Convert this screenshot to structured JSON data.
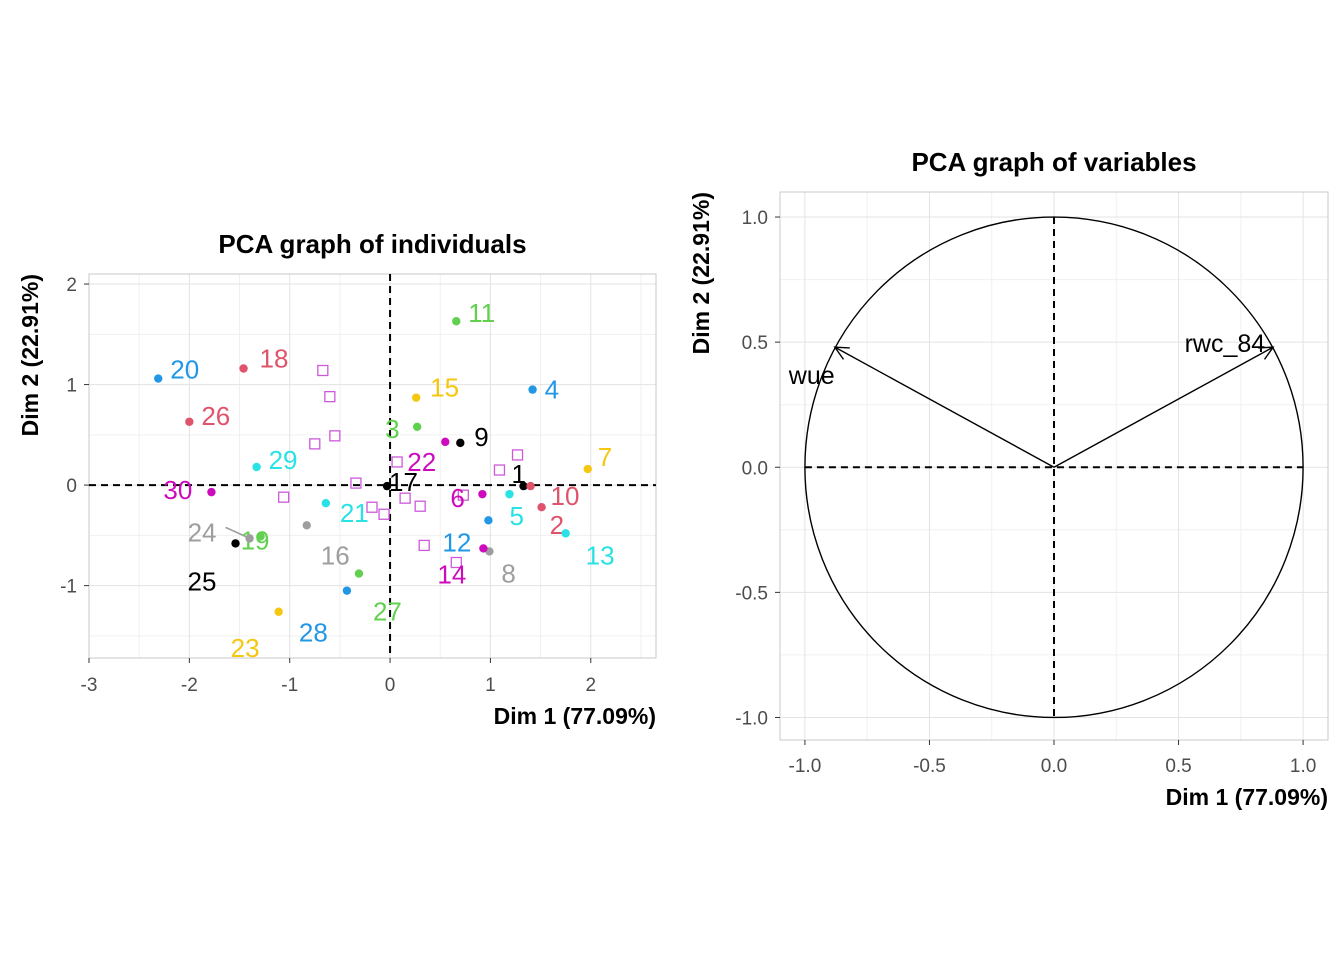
{
  "chart_data": [
    {
      "type": "scatter",
      "title": "PCA graph of individuals",
      "xlabel": "Dim 1 (77.09%)",
      "ylabel": "Dim 2 (22.91%)",
      "xlim": [
        -3,
        2.65
      ],
      "ylim": [
        -1.72,
        2.1
      ],
      "xticks": [
        -3,
        -2,
        -1,
        0,
        1,
        2
      ],
      "yticks": [
        -1,
        0,
        1,
        2
      ],
      "grid": true,
      "reference_lines": "dashed at x=0 and y=0",
      "individuals": [
        {
          "label": "1",
          "x": 1.33,
          "y": -0.01,
          "color": "#000000"
        },
        {
          "label": "2",
          "x": 1.51,
          "y": -0.22,
          "color": "#DF536B"
        },
        {
          "label": "3",
          "x": 0.27,
          "y": 0.58,
          "color": "#61D04F"
        },
        {
          "label": "4",
          "x": 1.42,
          "y": 0.95,
          "color": "#2297E6"
        },
        {
          "label": "5",
          "x": 1.19,
          "y": -0.09,
          "color": "#28E2E5"
        },
        {
          "label": "6",
          "x": 0.92,
          "y": -0.09,
          "color": "#CD0BBC"
        },
        {
          "label": "7",
          "x": 1.97,
          "y": 0.16,
          "color": "#F5C710"
        },
        {
          "label": "8",
          "x": 0.99,
          "y": -0.66,
          "color": "#9E9E9E"
        },
        {
          "label": "9",
          "x": 0.7,
          "y": 0.42,
          "color": "#000000"
        },
        {
          "label": "10",
          "x": 1.4,
          "y": -0.01,
          "color": "#DF536B"
        },
        {
          "label": "11",
          "x": 0.66,
          "y": 1.63,
          "color": "#61D04F"
        },
        {
          "label": "12",
          "x": 0.98,
          "y": -0.35,
          "color": "#2297E6"
        },
        {
          "label": "13",
          "x": 1.75,
          "y": -0.48,
          "color": "#28E2E5"
        },
        {
          "label": "14",
          "x": 0.93,
          "y": -0.63,
          "color": "#CD0BBC"
        },
        {
          "label": "15",
          "x": 0.26,
          "y": 0.87,
          "color": "#F5C710"
        },
        {
          "label": "16",
          "x": -0.83,
          "y": -0.4,
          "color": "#9E9E9E"
        },
        {
          "label": "17",
          "x": -0.03,
          "y": -0.01,
          "color": "#000000"
        },
        {
          "label": "18",
          "x": -1.46,
          "y": 1.16,
          "color": "#DF536B"
        },
        {
          "label": "19",
          "x": -1.29,
          "y": -0.51,
          "color": "#61D04F"
        },
        {
          "label": "20",
          "x": -2.31,
          "y": 1.06,
          "color": "#2297E6"
        },
        {
          "label": "21",
          "x": -0.64,
          "y": -0.18,
          "color": "#28E2E5"
        },
        {
          "label": "22",
          "x": 0.55,
          "y": 0.43,
          "color": "#CD0BBC"
        },
        {
          "label": "23",
          "x": -1.11,
          "y": -1.26,
          "color": "#F5C710"
        },
        {
          "label": "24",
          "x": -1.4,
          "y": -0.53,
          "color": "#9E9E9E"
        },
        {
          "label": "25",
          "x": -1.54,
          "y": -0.58,
          "color": "#000000"
        },
        {
          "label": "26",
          "x": -2.0,
          "y": 0.63,
          "color": "#DF536B"
        },
        {
          "label": "27",
          "x": -0.31,
          "y": -0.88,
          "color": "#61D04F"
        },
        {
          "label": "28",
          "x": -0.43,
          "y": -1.05,
          "color": "#2297E6"
        },
        {
          "label": "29",
          "x": -1.33,
          "y": 0.18,
          "color": "#28E2E5"
        },
        {
          "label": "30",
          "x": -1.78,
          "y": -0.07,
          "color": "#CD0BBC"
        }
      ],
      "supplementary_points": [
        {
          "x": -0.67,
          "y": 1.14
        },
        {
          "x": -0.6,
          "y": 0.88
        },
        {
          "x": -0.55,
          "y": 0.49
        },
        {
          "x": -0.75,
          "y": 0.41
        },
        {
          "x": -1.06,
          "y": -0.12
        },
        {
          "x": -0.34,
          "y": 0.02
        },
        {
          "x": -0.18,
          "y": -0.22
        },
        {
          "x": -0.06,
          "y": -0.29
        },
        {
          "x": 0.07,
          "y": 0.23
        },
        {
          "x": 0.15,
          "y": -0.13
        },
        {
          "x": 0.3,
          "y": -0.21
        },
        {
          "x": 0.34,
          "y": -0.6
        },
        {
          "x": 0.66,
          "y": -0.77
        },
        {
          "x": 0.73,
          "y": -0.1
        },
        {
          "x": 1.09,
          "y": 0.15
        },
        {
          "x": 1.27,
          "y": 0.3
        }
      ]
    },
    {
      "type": "scatter",
      "title": "PCA graph of variables",
      "xlabel": "Dim 1 (77.09%)",
      "ylabel": "Dim 2 (22.91%)",
      "xlim": [
        -1.1,
        1.1
      ],
      "ylim": [
        -1.09,
        1.1
      ],
      "xticks": [
        "-1.0",
        "-0.5",
        "0.0",
        "0.5",
        "1.0"
      ],
      "yticks": [
        "-1.0",
        "-0.5",
        "0.0",
        "0.5",
        "1.0"
      ],
      "grid": true,
      "correlation_circle": true,
      "variables": [
        {
          "label": "rwc_84",
          "x": 0.88,
          "y": 0.48
        },
        {
          "label": "wue",
          "x": -0.88,
          "y": 0.48
        }
      ]
    }
  ]
}
